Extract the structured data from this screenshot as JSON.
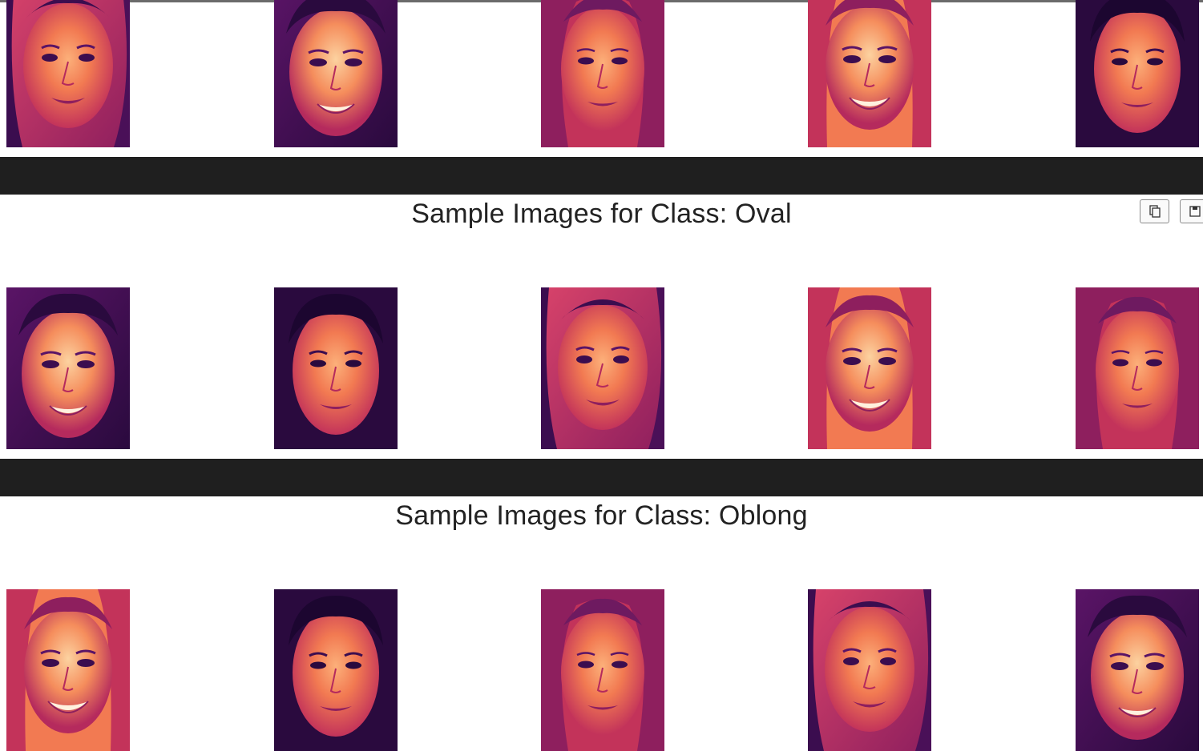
{
  "sections": [
    {
      "title": "",
      "face_count": 5
    },
    {
      "title": "Sample Images for Class: Oval",
      "face_count": 5
    },
    {
      "title": "Sample Images for Class: Oblong",
      "face_count": 5
    }
  ],
  "toolbar": {
    "copy_icon": "copy-icon",
    "save_icon": "save-icon"
  },
  "colors": {
    "separator": "#1f1f1f",
    "face_dark": "#3b0d4f",
    "face_mid": "#c3335a",
    "face_light": "#f27a52",
    "face_highlight": "#fcd2a0"
  }
}
